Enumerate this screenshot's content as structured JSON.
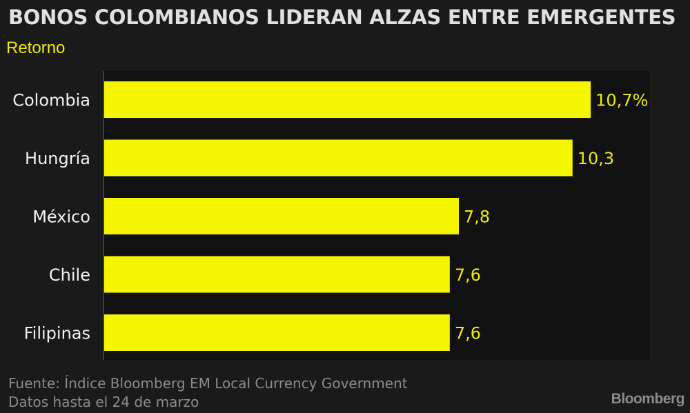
{
  "title": "BONOS COLOMBIANOS LIDERAN ALZAS ENTRE EMERGENTES",
  "subtitle": "Retorno",
  "footer": {
    "line1": "Fuente: Índice Bloomberg EM Local Currency Government",
    "line2": "Datos hasta el 24 de marzo"
  },
  "brand": "Bloomberg",
  "colors": {
    "background": "#1a1a1a",
    "plot_background": "#111111",
    "bar": "#f5f500",
    "value_label": "#f0ec00",
    "category_label": "#f2f2f2",
    "footer_text": "#8c8c8c"
  },
  "chart_data": {
    "type": "bar",
    "orientation": "horizontal",
    "title": "BONOS COLOMBIANOS LIDERAN ALZAS ENTRE EMERGENTES",
    "subtitle": "Retorno",
    "categories": [
      "Colombia",
      "Hungría",
      "México",
      "Chile",
      "Filipinas"
    ],
    "values": [
      10.7,
      10.3,
      7.8,
      7.6,
      7.6
    ],
    "value_labels": [
      "10,7%",
      "10,3",
      "7,8",
      "7,6",
      "7,6"
    ],
    "unit": "%",
    "xlim": [
      0,
      12
    ],
    "grid": false,
    "legend": "none"
  }
}
